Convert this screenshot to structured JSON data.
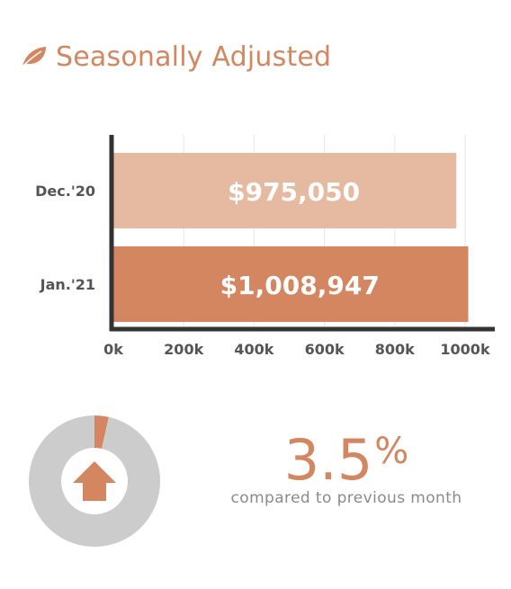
{
  "header": {
    "icon": "leaf-icon",
    "title": "Seasonally Adjusted",
    "color": "#d38660"
  },
  "chart_data": [
    {
      "type": "bar",
      "orientation": "horizontal",
      "categories": [
        "Dec.'20",
        "Jan.'21"
      ],
      "values": [
        975050,
        1008947
      ],
      "data_labels": [
        "$975,050",
        "$1,008,947"
      ],
      "bar_colors": [
        "#e6b9a1",
        "#d38660"
      ],
      "xlim": [
        0,
        1000000
      ],
      "xticks": [
        "0k",
        "200k",
        "400k",
        "600k",
        "800k",
        "1000k"
      ],
      "grid": true
    },
    {
      "type": "pie",
      "variant": "donut",
      "values": [
        3.5,
        96.5
      ],
      "colors": [
        "#d38660",
        "#cccccc"
      ],
      "center_icon": "arrow-up-icon"
    }
  ],
  "stat": {
    "value": "3.5",
    "unit": "%",
    "caption": "compared to previous month"
  }
}
